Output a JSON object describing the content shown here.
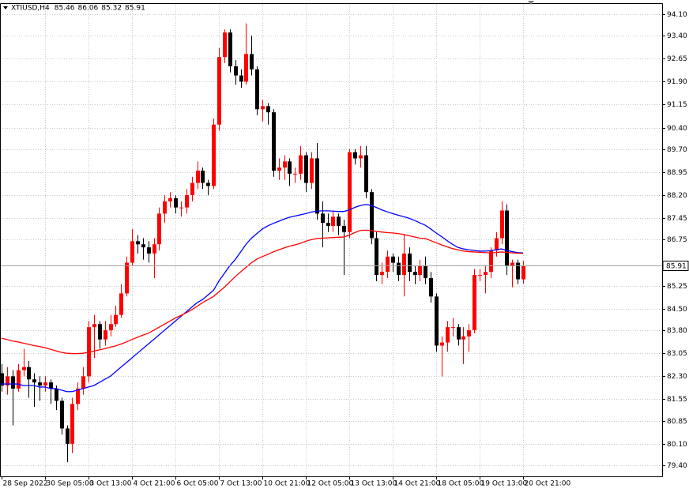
{
  "chart_data": {
    "type": "candlestick",
    "title": "XTIUSD,H4",
    "categories": [
      "28 Sep 2022",
      null,
      null,
      null,
      null,
      null,
      null,
      null,
      "30 Sep 05:00",
      null,
      null,
      null,
      null,
      null,
      null,
      null,
      "3 Oct 13:00",
      null,
      null,
      null,
      null,
      null,
      null,
      null,
      "4 Oct 21:00",
      null,
      null,
      null,
      null,
      null,
      null,
      null,
      "6 Oct 05:00",
      null,
      null,
      null,
      null,
      null,
      null,
      null,
      "7 Oct 13:00",
      null,
      null,
      null,
      null,
      null,
      null,
      null,
      "10 Oct 21:00",
      null,
      null,
      null,
      null,
      null,
      null,
      null,
      "12 Oct 05:00",
      null,
      null,
      null,
      null,
      null,
      null,
      null,
      "13 Oct 13:00",
      null,
      null,
      null,
      null,
      null,
      null,
      null,
      "14 Oct 21:00",
      null,
      null,
      null,
      null,
      null,
      null,
      null,
      "18 Oct 05:00",
      null,
      null,
      null,
      null,
      null,
      null,
      null,
      "19 Oct 13:00",
      null,
      null,
      null,
      null,
      null,
      null,
      null,
      "20 Oct 21:00"
    ],
    "open": [
      82.4,
      82.0,
      82.3,
      81.9,
      82.5,
      82.6,
      82.2,
      82.1,
      82.0,
      82.1,
      81.9,
      81.5,
      80.6,
      80.1,
      81.4,
      81.9,
      82.3,
      83.9,
      84.0,
      83.5,
      83.8,
      84.0,
      84.3,
      85.0,
      86.0,
      86.7,
      86.6,
      86.5,
      86.3,
      86.6,
      87.6,
      88.0,
      88.1,
      87.8,
      87.8,
      88.2,
      88.6,
      89.0,
      88.6,
      88.5,
      90.5,
      92.7,
      93.5,
      92.4,
      92.1,
      91.9,
      92.8,
      92.3,
      91.0,
      91.1,
      90.9,
      89.0,
      89.1,
      89.3,
      88.9,
      88.9,
      89.5,
      88.6,
      89.4,
      87.6,
      87.3,
      87.2,
      87.5,
      87.2,
      87.0,
      89.6,
      89.4,
      89.5,
      88.3,
      86.8,
      85.6,
      85.7,
      86.2,
      86.0,
      85.6,
      86.3,
      85.7,
      85.6,
      85.9,
      85.5,
      84.9,
      83.3,
      83.4,
      83.9,
      83.9,
      83.5,
      83.6,
      83.8,
      85.6,
      85.6,
      85.7,
      86.4,
      86.8,
      87.7,
      85.9,
      86.0,
      85.46
    ],
    "high": [
      82.7,
      82.6,
      82.5,
      82.7,
      83.2,
      82.8,
      82.4,
      82.3,
      82.3,
      82.2,
      82.0,
      81.6,
      80.7,
      81.6,
      82.1,
      82.6,
      84.1,
      84.3,
      84.1,
      84.1,
      84.3,
      84.6,
      85.3,
      86.2,
      87.1,
      86.9,
      86.8,
      86.7,
      86.8,
      87.8,
      88.2,
      88.3,
      88.2,
      88.0,
      88.4,
      88.8,
      89.3,
      89.1,
      88.7,
      90.7,
      93.0,
      93.6,
      93.6,
      92.6,
      92.3,
      93.8,
      93.4,
      92.4,
      91.3,
      91.2,
      91.0,
      89.4,
      89.5,
      89.4,
      89.1,
      89.8,
      89.6,
      89.6,
      89.9,
      88.0,
      87.6,
      87.7,
      87.6,
      87.4,
      89.7,
      89.7,
      89.8,
      89.8,
      88.4,
      87.0,
      86.0,
      86.4,
      86.3,
      86.2,
      86.9,
      86.5,
      85.9,
      86.1,
      86.2,
      85.7,
      85.0,
      83.6,
      84.1,
      84.2,
      84.0,
      83.9,
      84.0,
      85.8,
      85.8,
      85.9,
      86.5,
      87.0,
      88.0,
      87.9,
      86.1,
      86.1,
      86.06
    ],
    "low": [
      81.8,
      81.7,
      80.7,
      81.8,
      82.3,
      81.6,
      81.3,
      81.5,
      81.8,
      81.4,
      81.2,
      80.4,
      79.5,
      79.8,
      81.2,
      81.7,
      82.1,
      82.9,
      83.2,
      83.3,
      83.6,
      83.9,
      84.2,
      84.9,
      85.9,
      86.3,
      86.1,
      86.0,
      85.5,
      86.4,
      87.3,
      87.8,
      87.6,
      87.5,
      87.6,
      88.0,
      88.4,
      88.4,
      88.2,
      88.4,
      90.3,
      92.5,
      92.2,
      91.8,
      91.7,
      91.8,
      92.1,
      90.8,
      90.6,
      90.5,
      88.8,
      88.7,
      88.7,
      88.5,
      88.6,
      88.7,
      88.3,
      88.4,
      87.4,
      86.5,
      87.0,
      87.0,
      86.9,
      85.6,
      86.8,
      89.2,
      89.1,
      88.1,
      86.6,
      85.4,
      85.3,
      85.5,
      85.7,
      85.4,
      84.9,
      85.4,
      85.3,
      85.4,
      85.3,
      84.7,
      83.1,
      82.3,
      83.1,
      83.6,
      83.3,
      82.7,
      83.1,
      83.7,
      85.4,
      85.0,
      85.5,
      86.2,
      86.6,
      85.6,
      85.2,
      85.3,
      85.32
    ],
    "close": [
      82.0,
      82.3,
      81.9,
      82.5,
      82.6,
      82.2,
      82.1,
      82.0,
      82.1,
      81.9,
      81.5,
      80.6,
      80.1,
      81.4,
      81.9,
      82.3,
      83.9,
      84.0,
      83.5,
      83.8,
      84.0,
      84.3,
      85.0,
      86.0,
      86.7,
      86.6,
      86.5,
      86.3,
      86.6,
      87.6,
      88.0,
      88.1,
      87.8,
      87.8,
      88.2,
      88.6,
      89.0,
      88.6,
      88.5,
      90.5,
      92.7,
      93.5,
      92.4,
      92.1,
      91.9,
      92.8,
      92.3,
      91.0,
      91.1,
      90.9,
      89.0,
      89.1,
      89.3,
      88.9,
      88.9,
      89.5,
      88.6,
      89.4,
      87.6,
      87.3,
      87.2,
      87.5,
      87.2,
      87.0,
      89.6,
      89.4,
      89.5,
      88.3,
      86.8,
      85.6,
      85.7,
      86.2,
      86.0,
      85.6,
      86.3,
      85.7,
      85.6,
      85.9,
      85.5,
      84.9,
      83.3,
      83.4,
      83.9,
      83.9,
      83.5,
      83.6,
      83.8,
      85.6,
      85.6,
      85.7,
      86.4,
      86.8,
      87.7,
      85.9,
      86.0,
      85.46,
      85.91
    ],
    "up_color": "#ff0000",
    "down_color": "#000000",
    "series": [
      {
        "color": "#0000ff",
        "values": [
          82.05,
          82.05,
          82.05,
          82.05,
          82.0,
          82.0,
          82.0,
          81.95,
          81.95,
          81.9,
          81.9,
          81.85,
          81.8,
          81.8,
          81.85,
          81.9,
          81.95,
          82.0,
          82.1,
          82.2,
          82.3,
          82.45,
          82.6,
          82.75,
          82.9,
          83.05,
          83.2,
          83.35,
          83.5,
          83.65,
          83.8,
          83.95,
          84.1,
          84.25,
          84.4,
          84.55,
          84.7,
          84.8,
          84.95,
          85.1,
          85.4,
          85.65,
          85.9,
          86.1,
          86.35,
          86.6,
          86.8,
          86.95,
          87.1,
          87.2,
          87.28,
          87.35,
          87.42,
          87.48,
          87.52,
          87.56,
          87.6,
          87.65,
          87.68,
          87.69,
          87.69,
          87.68,
          87.67,
          87.67,
          87.72,
          87.8,
          87.86,
          87.9,
          87.87,
          87.8,
          87.72,
          87.66,
          87.6,
          87.55,
          87.5,
          87.45,
          87.38,
          87.3,
          87.22,
          87.1,
          86.97,
          86.85,
          86.72,
          86.6,
          86.5,
          86.45,
          86.42,
          86.4,
          86.38,
          86.38,
          86.39,
          86.42,
          86.45,
          86.4,
          86.36,
          86.33,
          86.32
        ]
      },
      {
        "color": "#ff0000",
        "values": [
          83.54,
          83.5,
          83.45,
          83.42,
          83.38,
          83.34,
          83.3,
          83.27,
          83.23,
          83.18,
          83.13,
          83.08,
          83.05,
          83.04,
          83.04,
          83.05,
          83.08,
          83.12,
          83.16,
          83.2,
          83.25,
          83.29,
          83.35,
          83.42,
          83.5,
          83.57,
          83.64,
          83.7,
          83.8,
          83.9,
          84.0,
          84.1,
          84.2,
          84.28,
          84.37,
          84.47,
          84.58,
          84.7,
          84.8,
          84.9,
          85.05,
          85.2,
          85.37,
          85.55,
          85.7,
          85.85,
          86.0,
          86.12,
          86.2,
          86.27,
          86.35,
          86.42,
          86.48,
          86.54,
          86.58,
          86.63,
          86.7,
          86.75,
          86.79,
          86.8,
          86.81,
          86.82,
          86.83,
          86.84,
          86.9,
          86.98,
          87.05,
          87.06,
          87.05,
          87.02,
          87.0,
          86.98,
          86.97,
          86.95,
          86.92,
          86.88,
          86.84,
          86.8,
          86.79,
          86.72,
          86.65,
          86.58,
          86.52,
          86.46,
          86.42,
          86.38,
          86.36,
          86.35,
          86.34,
          86.33,
          86.32,
          86.33,
          86.35,
          86.34,
          86.32,
          86.31,
          86.3
        ]
      }
    ],
    "ylim": [
      79.04,
      94.43
    ],
    "yticks": [
      {
        "value": 94.1,
        "label": "94.10"
      },
      {
        "value": 93.4,
        "label": "93.40"
      },
      92.65,
      {
        "value": 91.9,
        "label": "91.90"
      },
      91.15,
      {
        "value": 90.4,
        "label": "90.40"
      },
      {
        "value": 89.7,
        "label": "89.70"
      },
      88.95,
      {
        "value": 88.2,
        "label": "88.20"
      },
      87.45,
      86.75,
      85.25,
      {
        "value": 84.5,
        "label": "84.50"
      },
      {
        "value": 83.8,
        "label": "83.80"
      },
      83.05,
      {
        "value": 82.3,
        "label": "82.30"
      },
      81.55,
      80.85,
      {
        "value": 80.1,
        "label": "80.10"
      },
      {
        "value": 79.4,
        "label": "79.40"
      }
    ],
    "grid": true
  }
}
